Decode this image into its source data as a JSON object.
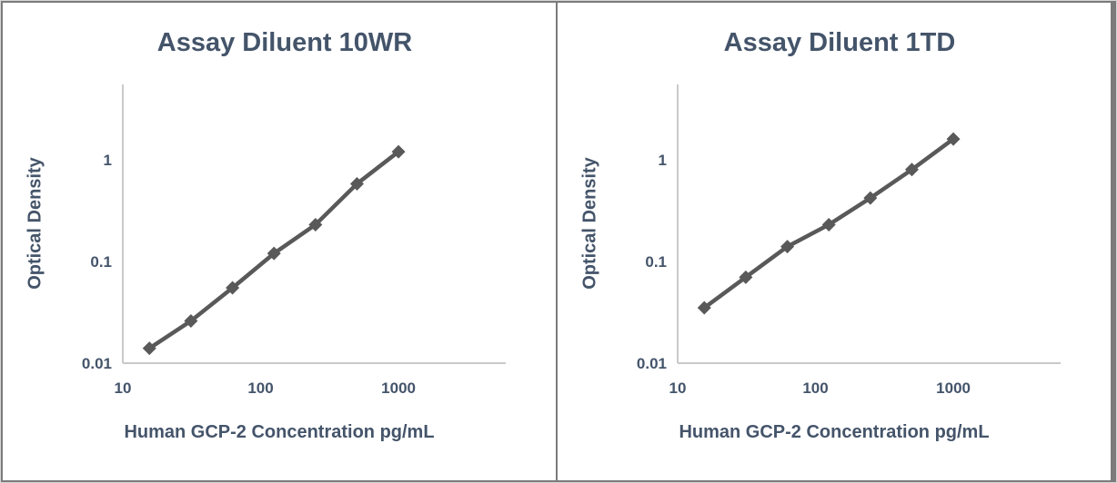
{
  "figure": {
    "description": "Two ELISA standard curves comparing assay diluents",
    "background": "#ffffff"
  },
  "colors": {
    "text": "#44546a",
    "series": "#595959",
    "axis_line": "#c9c9c9",
    "frame": "#7b7b7b"
  },
  "chart_data": [
    {
      "type": "line",
      "title": "Assay Diluent 10WR",
      "xlabel": "Human GCP-2 Concentration pg/mL",
      "ylabel": "Optical Density",
      "x_scale": "log",
      "y_scale": "log",
      "xlim": [
        10,
        6000
      ],
      "ylim": [
        0.01,
        5.5
      ],
      "x_ticks": [
        "10",
        "100",
        "1000"
      ],
      "y_ticks": [
        "0.01",
        "0.1",
        "1"
      ],
      "grid": false,
      "legend": "none",
      "marker": "diamond",
      "x": [
        15.6,
        31.2,
        62.5,
        125,
        250,
        500,
        1000
      ],
      "series": [
        {
          "name": "Assay Diluent 10WR",
          "values": [
            0.014,
            0.026,
            0.055,
            0.12,
            0.23,
            0.58,
            1.2
          ]
        }
      ]
    },
    {
      "type": "line",
      "title": "Assay Diluent 1TD",
      "xlabel": "Human GCP-2 Concentration pg/mL",
      "ylabel": "Optical Density",
      "x_scale": "log",
      "y_scale": "log",
      "xlim": [
        10,
        6000
      ],
      "ylim": [
        0.01,
        5.5
      ],
      "x_ticks": [
        "10",
        "100",
        "1000"
      ],
      "y_ticks": [
        "0.01",
        "0.1",
        "1"
      ],
      "grid": false,
      "legend": "none",
      "marker": "diamond",
      "x": [
        15.6,
        31.2,
        62.5,
        125,
        250,
        500,
        1000
      ],
      "series": [
        {
          "name": "Assay Diluent 1TD",
          "values": [
            0.035,
            0.07,
            0.14,
            0.23,
            0.42,
            0.8,
            1.6
          ]
        }
      ]
    }
  ]
}
